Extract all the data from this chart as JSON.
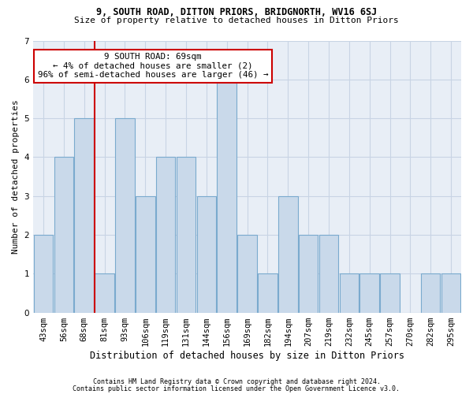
{
  "title1": "9, SOUTH ROAD, DITTON PRIORS, BRIDGNORTH, WV16 6SJ",
  "title2": "Size of property relative to detached houses in Ditton Priors",
  "xlabel": "Distribution of detached houses by size in Ditton Priors",
  "ylabel": "Number of detached properties",
  "categories": [
    "43sqm",
    "56sqm",
    "68sqm",
    "81sqm",
    "93sqm",
    "106sqm",
    "119sqm",
    "131sqm",
    "144sqm",
    "156sqm",
    "169sqm",
    "182sqm",
    "194sqm",
    "207sqm",
    "219sqm",
    "232sqm",
    "245sqm",
    "257sqm",
    "270sqm",
    "282sqm",
    "295sqm"
  ],
  "values": [
    2,
    4,
    5,
    1,
    5,
    3,
    4,
    4,
    3,
    6,
    2,
    1,
    3,
    2,
    2,
    1,
    1,
    1,
    0,
    1,
    1
  ],
  "bar_color": "#c9d9ea",
  "bar_edge_color": "#7aaace",
  "vline_index": 2,
  "vline_color": "#cc0000",
  "annotation_title": "9 SOUTH ROAD: 69sqm",
  "annotation_line1": "← 4% of detached houses are smaller (2)",
  "annotation_line2": "96% of semi-detached houses are larger (46) →",
  "annotation_box_facecolor": "#ffffff",
  "annotation_box_edgecolor": "#cc0000",
  "ylim": [
    0,
    7
  ],
  "yticks": [
    0,
    1,
    2,
    3,
    4,
    5,
    6,
    7
  ],
  "footnote1": "Contains HM Land Registry data © Crown copyright and database right 2024.",
  "footnote2": "Contains public sector information licensed under the Open Government Licence v3.0.",
  "grid_color": "#c8d4e4",
  "bg_color": "#e8eef6",
  "title1_fontsize": 8.5,
  "title2_fontsize": 8.0,
  "xlabel_fontsize": 8.5,
  "ylabel_fontsize": 8.0,
  "tick_fontsize": 7.5,
  "annot_fontsize": 7.8,
  "footnote_fontsize": 6.0
}
